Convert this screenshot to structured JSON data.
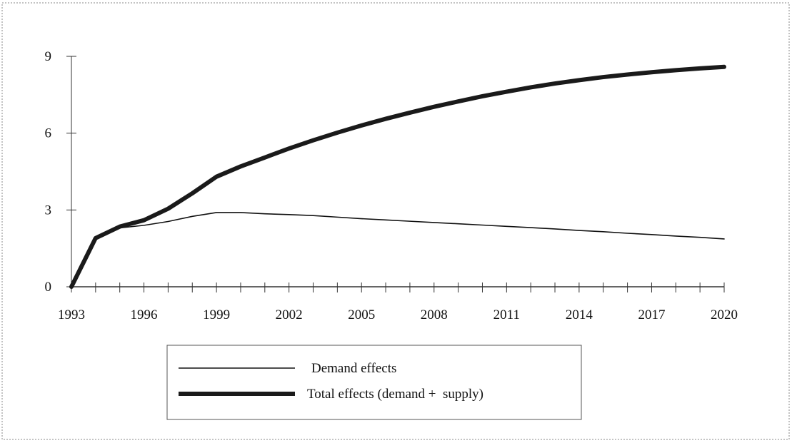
{
  "chart_data": {
    "type": "line",
    "title": "",
    "xlabel": "",
    "ylabel": "",
    "xlim": [
      1993,
      2020
    ],
    "ylim": [
      0,
      9
    ],
    "x_ticks": [
      1993,
      1996,
      1999,
      2002,
      2005,
      2008,
      2011,
      2014,
      2017,
      2020
    ],
    "y_ticks": [
      0,
      3,
      6,
      9
    ],
    "grid": false,
    "legend": "bottom-center",
    "series": [
      {
        "name": "Demand effects",
        "color": "#111111",
        "x": [
          1993,
          1994,
          1995,
          1996,
          1997,
          1998,
          1999,
          2000,
          2001,
          2002,
          2003,
          2004,
          2005,
          2006,
          2007,
          2008,
          2009,
          2010,
          2011,
          2012,
          2013,
          2014,
          2015,
          2016,
          2017,
          2018,
          2019,
          2020
        ],
        "y": [
          0,
          1.9,
          2.3,
          2.4,
          2.55,
          2.75,
          2.9,
          2.9,
          2.85,
          2.82,
          2.78,
          2.72,
          2.66,
          2.61,
          2.56,
          2.51,
          2.46,
          2.41,
          2.36,
          2.31,
          2.26,
          2.2,
          2.15,
          2.09,
          2.04,
          1.98,
          1.93,
          1.87
        ]
      },
      {
        "name": "Total effects (demand +  supply)",
        "color": "#1a1a1a",
        "x": [
          1993,
          1994,
          1995,
          1996,
          1997,
          1998,
          1999,
          2000,
          2001,
          2002,
          2003,
          2004,
          2005,
          2006,
          2007,
          2008,
          2009,
          2010,
          2011,
          2012,
          2013,
          2014,
          2015,
          2016,
          2017,
          2018,
          2019,
          2020
        ],
        "y": [
          0,
          1.9,
          2.35,
          2.6,
          3.05,
          3.65,
          4.3,
          4.7,
          5.05,
          5.4,
          5.72,
          6.02,
          6.3,
          6.56,
          6.8,
          7.03,
          7.24,
          7.44,
          7.62,
          7.79,
          7.94,
          8.07,
          8.19,
          8.29,
          8.38,
          8.46,
          8.53,
          8.59
        ]
      }
    ]
  }
}
